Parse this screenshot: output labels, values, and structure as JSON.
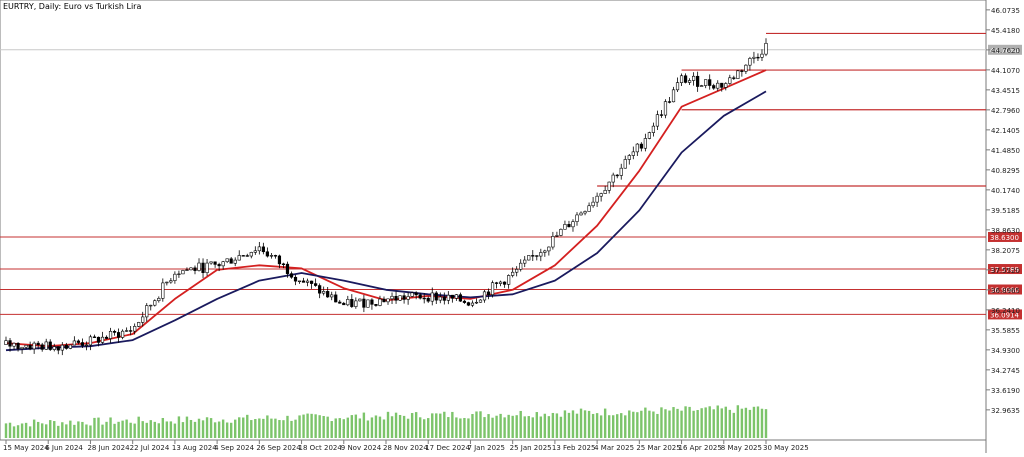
{
  "chart_data": {
    "type": "candlestick",
    "title": "EURTRY, Daily: Euro vs Turkish Lira",
    "ylim": [
      32.5,
      46.2
    ],
    "price_ticks": [
      "46.0735",
      "45.4180",
      "44.7620",
      "44.1070",
      "43.4515",
      "42.7960",
      "42.1405",
      "41.4850",
      "40.8295",
      "40.1740",
      "39.5185",
      "38.8630",
      "38.2075",
      "37.5520",
      "36.8965",
      "36.2410",
      "35.5855",
      "34.9300",
      "34.2745",
      "33.6190",
      "32.9635"
    ],
    "date_labels": [
      "15 May 2024",
      "6 Jun 2024",
      "28 Jun 2024",
      "22 Jul 2024",
      "13 Aug 2024",
      "4 Sep 2024",
      "26 Sep 2024",
      "18 Oct 2024",
      "9 Nov 2024",
      "28 Nov 2024",
      "17 Dec 2024",
      "7 Jan 2025",
      "25 Jan 2025",
      "13 Feb 2025",
      "4 Mar 2025",
      "25 Mar 2025",
      "16 Apr 2025",
      "8 May 2025",
      "30 May 2025"
    ],
    "current_price": {
      "label": "44.7644",
      "value": 44.7644
    },
    "levels": [
      {
        "label": "38.6300",
        "value": 38.63
      },
      {
        "label": "37.5789",
        "value": 37.5789
      },
      {
        "label": "36.9080",
        "value": 36.908
      },
      {
        "label": "36.0914",
        "value": 36.0914
      }
    ],
    "resistance_lines": [
      {
        "value": 45.3,
        "from": "30 May 2025"
      },
      {
        "value": 44.1,
        "from": "16 Apr 2025"
      },
      {
        "value": 42.8,
        "from": "16 Apr 2025"
      },
      {
        "value": 40.3,
        "from": "4 Mar 2025"
      }
    ],
    "price_path": [
      {
        "date": "15 May 2024",
        "close": 35.1
      },
      {
        "date": "6 Jun 2024",
        "close": 35.05
      },
      {
        "date": "28 Jun 2024",
        "close": 35.2
      },
      {
        "date": "22 Jul 2024",
        "close": 35.6
      },
      {
        "date": "13 Aug 2024",
        "close": 37.5
      },
      {
        "date": "4 Sep 2024",
        "close": 37.7
      },
      {
        "date": "26 Sep 2024",
        "close": 38.3
      },
      {
        "date": "18 Oct 2024",
        "close": 37.2
      },
      {
        "date": "9 Nov 2024",
        "close": 36.4
      },
      {
        "date": "28 Nov 2024",
        "close": 36.6
      },
      {
        "date": "17 Dec 2024",
        "close": 36.7
      },
      {
        "date": "7 Jan 2025",
        "close": 36.5
      },
      {
        "date": "25 Jan 2025",
        "close": 37.4
      },
      {
        "date": "13 Feb 2025",
        "close": 38.6
      },
      {
        "date": "4 Mar 2025",
        "close": 40.0
      },
      {
        "date": "25 Mar 2025",
        "close": 41.6
      },
      {
        "date": "16 Apr 2025",
        "close": 43.8
      },
      {
        "date": "8 May 2025",
        "close": 43.6
      },
      {
        "date": "30 May 2025",
        "close": 44.9
      }
    ],
    "series": [
      {
        "color": "#d42020",
        "values": [
          35.15,
          35.05,
          35.15,
          35.45,
          36.6,
          37.55,
          37.7,
          37.6,
          36.95,
          36.55,
          36.7,
          36.6,
          36.9,
          37.7,
          39.0,
          40.8,
          42.9,
          43.5,
          44.1
        ]
      },
      {
        "color": "#1a1a5e",
        "values": [
          34.92,
          35.0,
          35.05,
          35.25,
          35.9,
          36.6,
          37.2,
          37.45,
          37.2,
          36.9,
          36.75,
          36.65,
          36.75,
          37.2,
          38.1,
          39.5,
          41.4,
          42.6,
          43.4
        ]
      }
    ],
    "volume_label": "volume",
    "colors": {
      "price": "#000000",
      "ma_fast": "#d42020",
      "ma_slow": "#1a1a5e",
      "level": "#c43030",
      "volume": "#7cc46a"
    }
  }
}
